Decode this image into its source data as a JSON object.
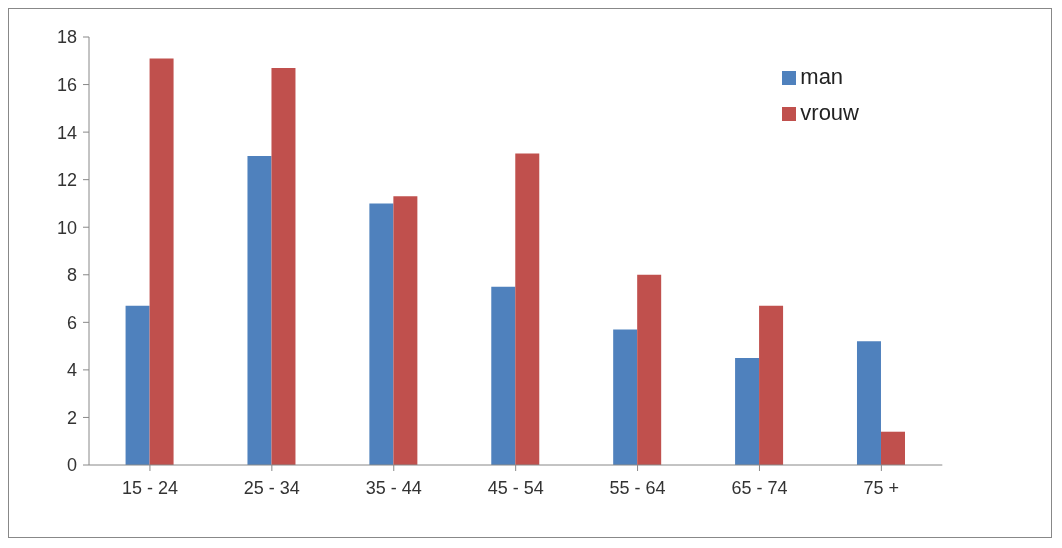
{
  "chart_data": {
    "type": "bar",
    "categories": [
      "15 - 24",
      "25 - 34",
      "35 - 44",
      "45 - 54",
      "55 - 64",
      "65 - 74",
      "75 +"
    ],
    "series": [
      {
        "name": "man",
        "color": "#4f81bd",
        "values": [
          6.7,
          13.0,
          11.0,
          7.5,
          5.7,
          4.5,
          5.2
        ]
      },
      {
        "name": "vrouw",
        "color": "#c0504d",
        "values": [
          17.1,
          16.7,
          11.3,
          13.1,
          8.0,
          6.7,
          1.4
        ]
      }
    ],
    "ylim": [
      0,
      18
    ],
    "yticks": [
      0,
      2,
      4,
      6,
      8,
      10,
      12,
      14,
      16,
      18
    ],
    "grid": false,
    "legend": "top right"
  }
}
